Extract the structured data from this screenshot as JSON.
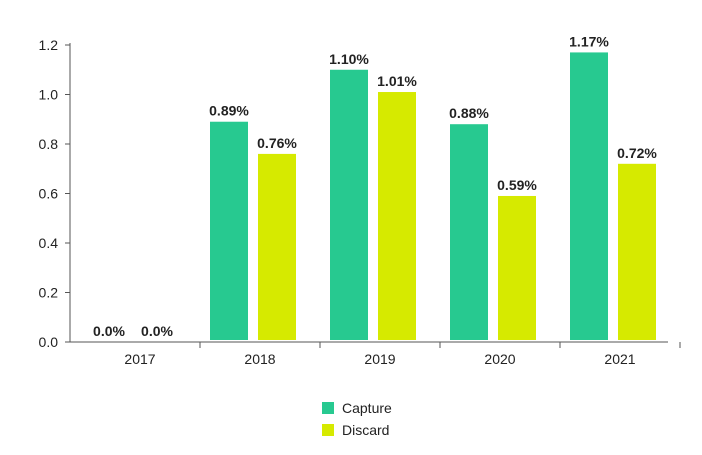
{
  "chart_data": {
    "type": "bar",
    "categories": [
      "2017",
      "2018",
      "2019",
      "2020",
      "2021"
    ],
    "series": [
      {
        "name": "Capture",
        "color": "#27C990",
        "values": [
          0.0,
          0.89,
          1.1,
          0.88,
          1.17
        ],
        "labels": [
          "0.0%",
          "0.89%",
          "1.10%",
          "0.88%",
          "1.17%"
        ]
      },
      {
        "name": "Discard",
        "color": "#D6EA00",
        "values": [
          0.0,
          0.76,
          1.01,
          0.59,
          0.72
        ],
        "labels": [
          "0.0%",
          "0.76%",
          "1.01%",
          "0.59%",
          "0.72%"
        ]
      }
    ],
    "yticks": [
      "0.0",
      "0.2",
      "0.4",
      "0.6",
      "0.8",
      "1.0",
      "1.2"
    ],
    "ylim": [
      0,
      1.2
    ],
    "legend_position": "bottom-center",
    "grid": false
  }
}
